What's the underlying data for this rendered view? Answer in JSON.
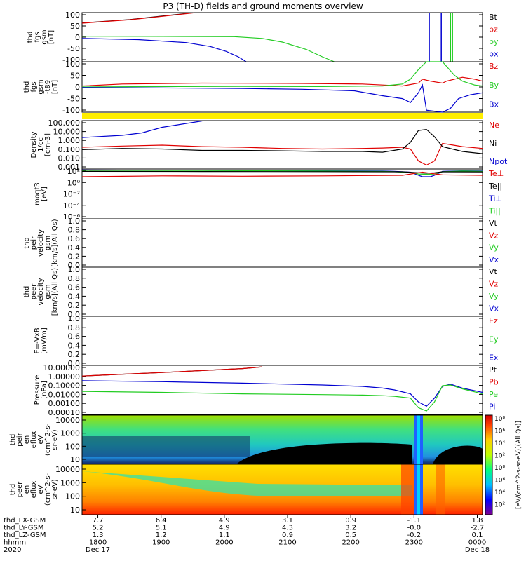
{
  "title": "P3 (TH-D) fields and ground moments overview",
  "colors": {
    "black": "#000000",
    "red": "#e00000",
    "green": "#22cc22",
    "blue": "#0000d0",
    "yellow": "#ffee00"
  },
  "chart_data": {
    "type": "line",
    "time": {
      "start": "2020-12-17 17:45",
      "end": "2020-12-18 00:05",
      "ticks": [
        {
          "hhmm": "1800",
          "date": "Dec 17",
          "x": "7.7",
          "y": "5.2",
          "z": "1.3"
        },
        {
          "hhmm": "1900",
          "date": "",
          "x": "6.4",
          "y": "5.1",
          "z": "1.2"
        },
        {
          "hhmm": "2000",
          "date": "",
          "x": "4.9",
          "y": "4.9",
          "z": "1.1"
        },
        {
          "hhmm": "2100",
          "date": "",
          "x": "3.1",
          "y": "4.3",
          "z": "0.9"
        },
        {
          "hhmm": "2200",
          "date": "",
          "x": "0.9",
          "y": "3.2",
          "z": "0.5"
        },
        {
          "hhmm": "2300",
          "date": "",
          "x": "-1.1",
          "y": "-0.0",
          "z": "-0.2"
        },
        {
          "hhmm": "0000",
          "date": "Dec 18",
          "x": "1.8",
          "y": "-2.7",
          "z": "0.1"
        }
      ],
      "row_labels": [
        "thd_LX-GSM",
        "thd_LY-GSM",
        "thd_LZ-GSM",
        "hhmm",
        "2020"
      ]
    },
    "panels": [
      {
        "name": "fgs",
        "ylabel": [
          "thd",
          "fgs",
          "gsm",
          "[nT]"
        ],
        "ylim": [
          -100,
          100
        ],
        "ticks": [
          "100",
          "50",
          "0",
          "-50",
          "-100"
        ],
        "legend": [
          {
            "label": "Bt",
            "color": "black"
          },
          {
            "label": "bz",
            "color": "red"
          },
          {
            "label": "by",
            "color": "green"
          },
          {
            "label": "bx",
            "color": "blue"
          }
        ],
        "series": [
          {
            "name": "Bt",
            "color": "black",
            "x": [
              0,
              0.12,
              0.2,
              0.28
            ],
            "y": [
              58,
              72,
              86,
              100
            ]
          },
          {
            "name": "bz",
            "color": "red",
            "x": [
              0,
              0.12,
              0.2,
              0.28
            ],
            "y": [
              57,
              71,
              85,
              99
            ]
          },
          {
            "name": "by",
            "color": "green",
            "x": [
              0,
              0.2,
              0.38,
              0.45,
              0.5,
              0.56,
              0.6,
              0.63
            ],
            "y": [
              4,
              3,
              2,
              -5,
              -20,
              -50,
              -80,
              -100
            ]
          },
          {
            "name": "bx",
            "color": "blue",
            "x": [
              0,
              0.14,
              0.26,
              0.32,
              0.36,
              0.39,
              0.41
            ],
            "y": [
              -5,
              -10,
              -22,
              -38,
              -58,
              -80,
              -100
            ]
          }
        ],
        "spikes": [
          {
            "x": 0.867,
            "color": "blue"
          },
          {
            "x": 0.897,
            "color": "blue"
          },
          {
            "x": 0.92,
            "color": "green"
          },
          {
            "x": 0.925,
            "color": "green"
          }
        ]
      },
      {
        "name": "fgs_minus",
        "ylabel": [
          "thd",
          "fgs",
          "gsm",
          "-t89",
          "[nT]"
        ],
        "ylim": [
          -130,
          130
        ],
        "ticks": [
          "100",
          "50",
          "0",
          "-50",
          "-100"
        ],
        "legend": [
          {
            "label": "Bz",
            "color": "red"
          },
          {
            "label": "By",
            "color": "green"
          },
          {
            "label": "Bx",
            "color": "blue"
          }
        ],
        "series": [
          {
            "name": "Bz",
            "color": "red",
            "x": [
              0,
              0.1,
              0.3,
              0.55,
              0.7,
              0.75,
              0.8,
              0.84,
              0.85,
              0.87,
              0.9,
              0.91,
              0.93,
              0.95,
              0.98,
              1
            ],
            "y": [
              5,
              15,
              20,
              18,
              15,
              10,
              5,
              20,
              40,
              30,
              20,
              30,
              40,
              50,
              40,
              30
            ]
          },
          {
            "name": "By",
            "color": "green",
            "x": [
              0,
              0.2,
              0.4,
              0.6,
              0.75,
              0.8,
              0.82,
              0.84,
              0.86,
              0.87,
              0.9,
              0.93,
              0.95,
              0.98,
              1
            ],
            "y": [
              0,
              2,
              3,
              2,
              5,
              15,
              40,
              90,
              130,
              130,
              130,
              60,
              30,
              10,
              5
            ]
          },
          {
            "name": "Bx",
            "color": "blue",
            "x": [
              0,
              0.2,
              0.4,
              0.55,
              0.68,
              0.75,
              0.8,
              0.82,
              0.84,
              0.85,
              0.86,
              0.9,
              0.92,
              0.94,
              0.97,
              1
            ],
            "y": [
              -3,
              -5,
              -8,
              -12,
              -20,
              -45,
              -60,
              -80,
              -30,
              10,
              -120,
              -130,
              -110,
              -60,
              -40,
              -30
            ]
          }
        ]
      },
      {
        "name": "density",
        "ylabel": [
          "Density",
          "1/cc",
          "[cm-3]"
        ],
        "ylim": [
          0.001,
          1000
        ],
        "log": true,
        "ticks": [
          "100.000",
          "10.000",
          "1.000",
          "0.100",
          "0.010",
          "0.001"
        ],
        "legend": [
          {
            "label": "Ne",
            "color": "red"
          },
          {
            "label": "Ni",
            "color": "black"
          },
          {
            "label": "Npot",
            "color": "blue"
          }
        ],
        "series": [
          {
            "name": "Npot",
            "color": "blue",
            "x": [
              0,
              0.1,
              0.15,
              0.2,
              0.3
            ],
            "y": [
              8,
              15,
              30,
              150,
              900
            ]
          },
          {
            "name": "Ne",
            "color": "red",
            "x": [
              0,
              0.1,
              0.2,
              0.3,
              0.4,
              0.5,
              0.6,
              0.7,
              0.75,
              0.8,
              0.82,
              0.84,
              0.86,
              0.88,
              0.9,
              0.95,
              1
            ],
            "y": [
              0.5,
              0.7,
              0.9,
              0.6,
              0.5,
              0.35,
              0.3,
              0.35,
              0.4,
              0.5,
              0.3,
              0.01,
              0.003,
              0.01,
              1.5,
              0.6,
              0.35
            ]
          },
          {
            "name": "Ni",
            "color": "black",
            "x": [
              0,
              0.1,
              0.2,
              0.3,
              0.4,
              0.5,
              0.6,
              0.7,
              0.75,
              0.8,
              0.82,
              0.84,
              0.86,
              0.88,
              0.9,
              0.95,
              1
            ],
            "y": [
              0.25,
              0.35,
              0.3,
              0.2,
              0.2,
              0.18,
              0.15,
              0.15,
              0.12,
              0.3,
              2,
              60,
              80,
              10,
              0.6,
              0.15,
              0.08
            ]
          }
        ]
      },
      {
        "name": "temperature",
        "ylabel": [
          "moqt3",
          "[eV]"
        ],
        "ylim": [
          1e-07,
          10000
        ],
        "log": true,
        "ticks": [
          "10²",
          "10⁰",
          "10⁻²",
          "10⁻⁴",
          "10⁻⁶"
        ],
        "legend": [
          {
            "label": "Te⊥",
            "color": "red"
          },
          {
            "label": "Te||",
            "color": "black"
          },
          {
            "label": "Ti⊥",
            "color": "blue"
          },
          {
            "label": "Ti||",
            "color": "green"
          }
        ],
        "series": [
          {
            "name": "Ti⊥",
            "color": "blue",
            "x": [
              0,
              0.3,
              0.6,
              0.75,
              0.78,
              0.82,
              0.84,
              0.85,
              0.87,
              0.88,
              0.9,
              0.95,
              1
            ],
            "y": [
              6000,
              5000,
              4000,
              3500,
              3000,
              2000,
              400,
              200,
              200,
              400,
              3000,
              4000,
              3500
            ]
          },
          {
            "name": "Ti||",
            "color": "green",
            "x": [
              0,
              0.3,
              0.6,
              0.75,
              0.78,
              0.82,
              0.84,
              0.86,
              0.88,
              0.9,
              0.95,
              1
            ],
            "y": [
              5000,
              4500,
              3500,
              3000,
              2500,
              1500,
              800,
              700,
              800,
              2500,
              3500,
              3000
            ]
          },
          {
            "name": "Te||",
            "color": "black",
            "x": [
              0,
              0.3,
              0.6,
              0.8,
              0.84,
              0.86,
              0.88,
              0.9,
              1
            ],
            "y": [
              3000,
              2800,
              2600,
              2400,
              1500,
              1200,
              1500,
              2400,
              2300
            ]
          },
          {
            "name": "Te⊥",
            "color": "red",
            "x": [
              0,
              0.2,
              0.4,
              0.6,
              0.8,
              0.85,
              0.9,
              1
            ],
            "y": [
              200,
              300,
              250,
              300,
              400,
              2000,
              500,
              400
            ]
          }
        ]
      },
      {
        "name": "peir_vel",
        "ylabel": [
          "thd",
          "peir",
          "velocity",
          "gsm",
          "[km/s](All Qs)"
        ],
        "ylim": [
          0,
          1
        ],
        "ticks": [
          "1.0",
          "0.8",
          "0.6",
          "0.4",
          "0.2",
          "0.0"
        ],
        "legend": [
          {
            "label": "Vt",
            "color": "black"
          },
          {
            "label": "Vz",
            "color": "red"
          },
          {
            "label": "Vy",
            "color": "green"
          },
          {
            "label": "Vx",
            "color": "blue"
          }
        ],
        "series": []
      },
      {
        "name": "peer_vel",
        "ylabel": [
          "thd",
          "peer",
          "velocity",
          "gsm",
          "[km/s](All Qs)"
        ],
        "ylim": [
          0,
          1
        ],
        "ticks": [
          "1.0",
          "0.8",
          "0.6",
          "0.4",
          "0.2",
          "0.0"
        ],
        "legend": [
          {
            "label": "Vt",
            "color": "black"
          },
          {
            "label": "Vz",
            "color": "red"
          },
          {
            "label": "Vy",
            "color": "green"
          },
          {
            "label": "Vx",
            "color": "blue"
          }
        ],
        "series": []
      },
      {
        "name": "efield",
        "ylabel": [
          "E=-VxB",
          "[mV/m]"
        ],
        "ylim": [
          0,
          1
        ],
        "ticks": [
          "1.0",
          "0.8",
          "0.6",
          "0.4",
          "0.2",
          "0.0"
        ],
        "legend": [
          {
            "label": "Ez",
            "color": "red"
          },
          {
            "label": "Ey",
            "color": "green"
          },
          {
            "label": "Ex",
            "color": "blue"
          }
        ],
        "series": []
      },
      {
        "name": "pressure",
        "ylabel": [
          "Pressure",
          "[nPa]"
        ],
        "ylim": [
          3e-05,
          30
        ],
        "log": true,
        "ticks": [
          "10.00000",
          "1.00000",
          "0.10000",
          "0.01000",
          "0.00100",
          "0.00010"
        ],
        "legend": [
          {
            "label": "Pt",
            "color": "black"
          },
          {
            "label": "Pb",
            "color": "red"
          },
          {
            "label": "Pe",
            "color": "green"
          },
          {
            "label": "Pi",
            "color": "blue"
          }
        ],
        "series": [
          {
            "name": "Pt",
            "color": "black",
            "x": [
              0,
              0.1,
              0.2,
              0.3,
              0.4,
              0.45
            ],
            "y": [
              1.5,
              2.5,
              4,
              7,
              12,
              20
            ]
          },
          {
            "name": "Pb",
            "color": "red",
            "x": [
              0,
              0.1,
              0.2,
              0.3,
              0.4,
              0.45
            ],
            "y": [
              1.5,
              2.5,
              4,
              7,
              12,
              20
            ]
          },
          {
            "name": "Pi",
            "color": "blue",
            "x": [
              0,
              0.2,
              0.4,
              0.6,
              0.7,
              0.75,
              0.78,
              0.82,
              0.84,
              0.86,
              0.88,
              0.9,
              0.92,
              0.95,
              1
            ],
            "y": [
              0.4,
              0.3,
              0.2,
              0.12,
              0.08,
              0.05,
              0.03,
              0.01,
              0.001,
              0.0003,
              0.003,
              0.08,
              0.15,
              0.05,
              0.015
            ]
          },
          {
            "name": "Pe",
            "color": "green",
            "x": [
              0,
              0.2,
              0.4,
              0.6,
              0.7,
              0.75,
              0.78,
              0.82,
              0.84,
              0.86,
              0.88,
              0.9,
              0.92,
              0.95,
              1
            ],
            "y": [
              0.02,
              0.015,
              0.01,
              0.008,
              0.007,
              0.006,
              0.005,
              0.003,
              0.0002,
              8e-05,
              0.001,
              0.1,
              0.12,
              0.04,
              0.01
            ]
          }
        ]
      }
    ],
    "spectrograms": [
      {
        "name": "peir",
        "ylabel": [
          "thd",
          "peir",
          "en",
          "eflux",
          "eV",
          "(cm^2-s-",
          "sr-eV)"
        ],
        "ylim": [
          10,
          10000
        ],
        "ticks": [
          "10000",
          "1000",
          "100",
          "10"
        ]
      },
      {
        "name": "peer",
        "ylabel": [
          "thd",
          "peer",
          "en",
          "eflux",
          "eV",
          "(cm^2-s-",
          "sr-eV)"
        ],
        "ylim": [
          10,
          10000
        ],
        "ticks": [
          "10000",
          "1000",
          "100",
          "10"
        ]
      }
    ],
    "colorbar": {
      "ticks": [
        "10⁸",
        "10⁶",
        "10⁴",
        "10²",
        "10⁸",
        "10⁶",
        "10⁴",
        "10²"
      ],
      "label": "[eV/(cm^2-s-sr-eV)](All Qs)]"
    }
  }
}
